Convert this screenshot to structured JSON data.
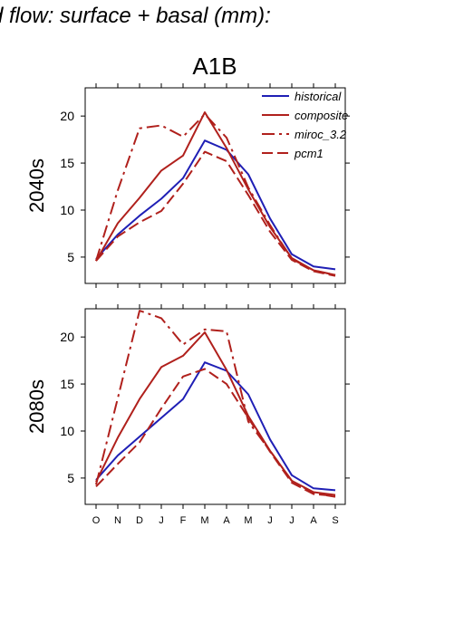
{
  "page_title": "d flow: surface + basal (mm):",
  "scenario": "A1B",
  "chart_data": [
    {
      "type": "line",
      "panel_label": "2040s",
      "categories": [
        "O",
        "N",
        "D",
        "J",
        "F",
        "M",
        "A",
        "M",
        "J",
        "J",
        "A",
        "S"
      ],
      "ylim": [
        2.2,
        23.0
      ],
      "yticks": [
        5,
        10,
        15,
        20
      ],
      "grid": false,
      "legend": "top-right",
      "series": [
        {
          "name": "historical",
          "color": "#1f1fb5",
          "dash": "solid",
          "values": [
            4.8,
            7.4,
            9.4,
            11.2,
            13.4,
            17.4,
            16.4,
            13.8,
            9.1,
            5.3,
            4.0,
            3.7
          ]
        },
        {
          "name": "composite",
          "color": "#b0201c",
          "dash": "solid",
          "values": [
            4.6,
            8.6,
            11.3,
            14.2,
            15.8,
            20.4,
            16.6,
            12.2,
            8.2,
            4.9,
            3.6,
            3.1
          ]
        },
        {
          "name": "miroc_3.2",
          "color": "#b0201c",
          "dash": "dashdot",
          "values": [
            4.6,
            12.1,
            18.7,
            19.0,
            17.8,
            20.2,
            17.7,
            12.4,
            8.4,
            4.8,
            3.6,
            3.1
          ]
        },
        {
          "name": "pcm1",
          "color": "#b0201c",
          "dash": "dashed",
          "values": [
            4.6,
            7.2,
            8.7,
            9.9,
            12.8,
            16.2,
            15.2,
            11.6,
            7.7,
            4.7,
            3.5,
            3.0
          ]
        }
      ]
    },
    {
      "type": "line",
      "panel_label": "2080s",
      "categories": [
        "O",
        "N",
        "D",
        "J",
        "F",
        "M",
        "A",
        "M",
        "J",
        "J",
        "A",
        "S"
      ],
      "ylim": [
        2.2,
        23.0
      ],
      "yticks": [
        5,
        10,
        15,
        20
      ],
      "grid": false,
      "legend": "none",
      "series": [
        {
          "name": "historical",
          "color": "#1f1fb5",
          "dash": "solid",
          "values": [
            4.8,
            7.4,
            9.4,
            11.4,
            13.4,
            17.3,
            16.4,
            13.9,
            9.1,
            5.3,
            3.9,
            3.7
          ]
        },
        {
          "name": "composite",
          "color": "#b0201c",
          "dash": "solid",
          "values": [
            4.6,
            9.3,
            13.4,
            16.8,
            18.0,
            20.5,
            16.5,
            11.6,
            7.9,
            4.7,
            3.5,
            3.2
          ]
        },
        {
          "name": "miroc_3.2",
          "color": "#b0201c",
          "dash": "dashdot",
          "values": [
            4.3,
            13.5,
            22.8,
            22.0,
            19.2,
            20.8,
            20.6,
            11.0,
            7.9,
            4.7,
            3.4,
            3.0
          ]
        },
        {
          "name": "pcm1",
          "color": "#b0201c",
          "dash": "dashed",
          "values": [
            4.1,
            6.5,
            8.8,
            12.4,
            15.8,
            16.6,
            15.0,
            11.4,
            7.8,
            4.5,
            3.3,
            3.1
          ]
        }
      ]
    }
  ]
}
